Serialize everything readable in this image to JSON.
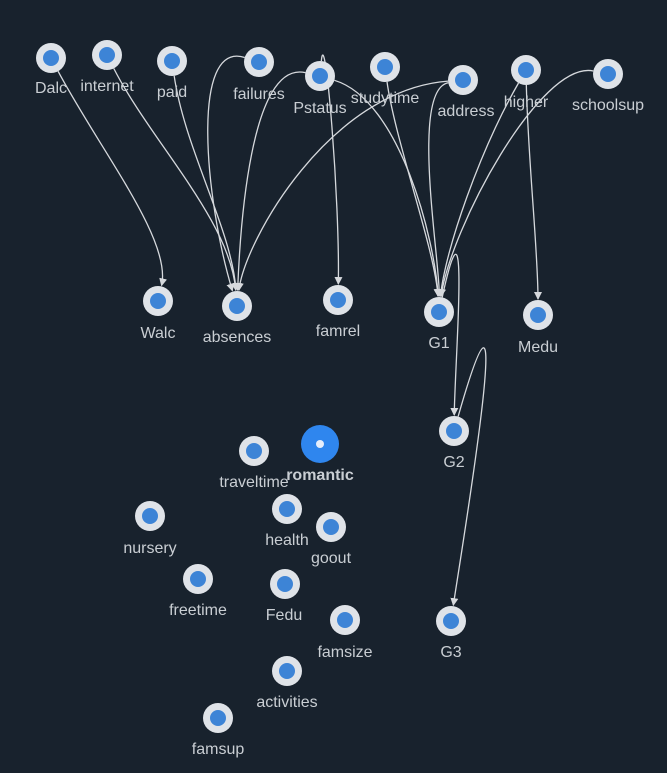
{
  "graph": {
    "colors": {
      "background": "#18222d",
      "node_ring": "#dfe3e8",
      "node_fill": "#3d84d6",
      "selected_fill": "#2f86ee",
      "selected_dot": "#e6eefb",
      "edge": "#d6d9dd",
      "label": "#c9ced3"
    },
    "selected_node": "romantic",
    "nodes": [
      {
        "id": "Dalc",
        "label": "Dalc"
      },
      {
        "id": "internet",
        "label": "internet"
      },
      {
        "id": "paid",
        "label": "paid"
      },
      {
        "id": "failures",
        "label": "failures"
      },
      {
        "id": "Pstatus",
        "label": "Pstatus"
      },
      {
        "id": "studytime",
        "label": "studytime"
      },
      {
        "id": "address",
        "label": "address"
      },
      {
        "id": "higher",
        "label": "higher"
      },
      {
        "id": "schoolsup",
        "label": "schoolsup"
      },
      {
        "id": "Walc",
        "label": "Walc"
      },
      {
        "id": "absences",
        "label": "absences"
      },
      {
        "id": "famrel",
        "label": "famrel"
      },
      {
        "id": "G1",
        "label": "G1"
      },
      {
        "id": "Medu",
        "label": "Medu"
      },
      {
        "id": "G2",
        "label": "G2"
      },
      {
        "id": "romantic",
        "label": "romantic"
      },
      {
        "id": "traveltime",
        "label": "traveltime"
      },
      {
        "id": "nursery",
        "label": "nursery"
      },
      {
        "id": "health",
        "label": "health"
      },
      {
        "id": "goout",
        "label": "goout"
      },
      {
        "id": "freetime",
        "label": "freetime"
      },
      {
        "id": "Fedu",
        "label": "Fedu"
      },
      {
        "id": "famsize",
        "label": "famsize"
      },
      {
        "id": "G3",
        "label": "G3"
      },
      {
        "id": "activities",
        "label": "activities"
      },
      {
        "id": "famsup",
        "label": "famsup"
      }
    ],
    "edges": [
      {
        "from": "Dalc",
        "to": "Walc"
      },
      {
        "from": "internet",
        "to": "absences"
      },
      {
        "from": "paid",
        "to": "absences"
      },
      {
        "from": "failures",
        "to": "absences"
      },
      {
        "from": "Pstatus",
        "to": "absences"
      },
      {
        "from": "address",
        "to": "absences"
      },
      {
        "from": "Pstatus",
        "to": "famrel"
      },
      {
        "from": "Pstatus",
        "to": "G1"
      },
      {
        "from": "studytime",
        "to": "G1"
      },
      {
        "from": "address",
        "to": "G1"
      },
      {
        "from": "higher",
        "to": "G1"
      },
      {
        "from": "schoolsup",
        "to": "G1"
      },
      {
        "from": "higher",
        "to": "Medu"
      },
      {
        "from": "G1",
        "to": "G2"
      },
      {
        "from": "G2",
        "to": "G3"
      }
    ]
  }
}
